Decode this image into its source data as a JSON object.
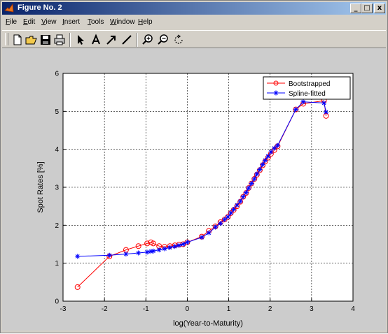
{
  "window": {
    "title": "Figure No. 2",
    "controls": {
      "minimize_glyph": "_",
      "maximize_glyph": "□",
      "close_glyph": "x"
    }
  },
  "menu": {
    "items": [
      {
        "label": "File",
        "icon": ""
      },
      {
        "label": "Edit"
      },
      {
        "label": "View"
      },
      {
        "label": "Insert"
      },
      {
        "label": "Tools"
      },
      {
        "label": "Window"
      },
      {
        "label": "Help"
      }
    ]
  },
  "toolbar": {
    "buttons": [
      "new-file-icon",
      "open-folder-icon",
      "save-icon",
      "print-icon",
      "select-arrow-icon",
      "text-icon",
      "arrow-icon",
      "line-icon",
      "zoom-in-icon",
      "zoom-out-icon",
      "rotate-icon"
    ]
  },
  "colors": {
    "bootstrapped": "#ff0000",
    "spline": "#0000ff",
    "figure_bg": "#cccccc"
  },
  "chart_data": {
    "type": "line",
    "xlabel": "log(Year-to-Maturity)",
    "ylabel": "Spot Rates [%]",
    "xlim": [
      -3,
      4
    ],
    "ylim": [
      0,
      6
    ],
    "xticks": [
      "-3",
      "-2",
      "-1",
      "0",
      "1",
      "2",
      "3",
      "4"
    ],
    "yticks": [
      "0",
      "1",
      "2",
      "3",
      "4",
      "5",
      "6"
    ],
    "grid": true,
    "legend_position": "top-right",
    "series": [
      {
        "name": "Bootstrapped",
        "marker": "circle",
        "x": [
          -2.65,
          -1.88,
          -1.48,
          -1.18,
          -0.97,
          -0.88,
          -0.82,
          -0.68,
          -0.55,
          -0.42,
          -0.3,
          -0.2,
          -0.1,
          0.0,
          0.35,
          0.52,
          0.68,
          0.8,
          0.9,
          0.98,
          1.05,
          1.12,
          1.2,
          1.28,
          1.35,
          1.42,
          1.48,
          1.55,
          1.62,
          1.68,
          1.75,
          1.82,
          1.88,
          1.95,
          2.02,
          2.1,
          2.18,
          2.62,
          2.8,
          3.3,
          3.35
        ],
        "y": [
          0.37,
          1.18,
          1.35,
          1.45,
          1.52,
          1.55,
          1.52,
          1.45,
          1.43,
          1.45,
          1.47,
          1.49,
          1.5,
          1.55,
          1.7,
          1.85,
          1.97,
          2.08,
          2.15,
          2.22,
          2.32,
          2.4,
          2.5,
          2.62,
          2.75,
          2.85,
          2.98,
          3.1,
          3.22,
          3.33,
          3.45,
          3.58,
          3.68,
          3.78,
          3.88,
          3.98,
          4.08,
          5.05,
          5.2,
          5.28,
          4.88
        ]
      },
      {
        "name": "Spline-fitted",
        "marker": "asterisk",
        "x": [
          -2.65,
          -1.88,
          -1.48,
          -1.18,
          -0.97,
          -0.88,
          -0.82,
          -0.68,
          -0.55,
          -0.42,
          -0.3,
          -0.2,
          -0.1,
          0.0,
          0.35,
          0.52,
          0.68,
          0.8,
          0.9,
          0.98,
          1.05,
          1.12,
          1.2,
          1.28,
          1.35,
          1.42,
          1.48,
          1.55,
          1.62,
          1.68,
          1.75,
          1.82,
          1.88,
          1.95,
          2.02,
          2.1,
          2.18,
          2.62,
          2.8,
          3.3,
          3.35
        ],
        "y": [
          1.18,
          1.21,
          1.24,
          1.27,
          1.29,
          1.31,
          1.32,
          1.35,
          1.38,
          1.41,
          1.44,
          1.47,
          1.5,
          1.55,
          1.68,
          1.8,
          1.95,
          2.05,
          2.15,
          2.22,
          2.32,
          2.42,
          2.53,
          2.63,
          2.75,
          2.86,
          2.98,
          3.1,
          3.22,
          3.35,
          3.47,
          3.6,
          3.71,
          3.82,
          3.93,
          4.03,
          4.1,
          5.05,
          5.25,
          5.22,
          4.98
        ]
      }
    ]
  }
}
